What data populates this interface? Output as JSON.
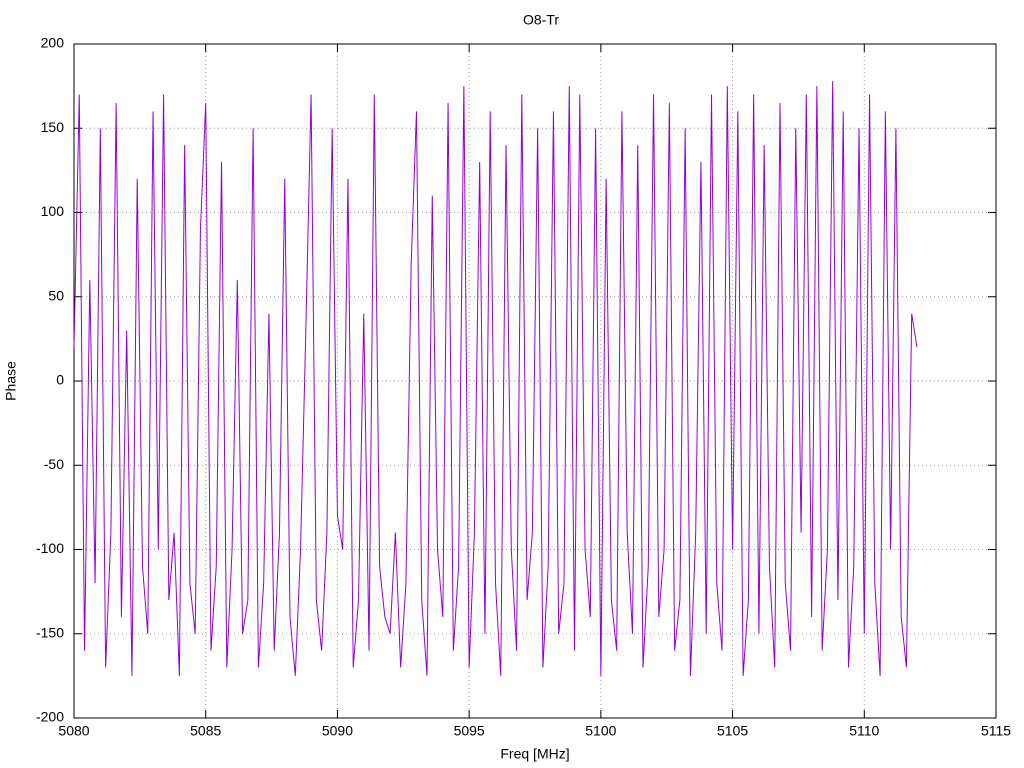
{
  "chart_data": {
    "type": "line",
    "title": "O8-Tr",
    "x_label": "Freq [MHz]",
    "y_label": "Phase",
    "xlim": [
      5080,
      5115
    ],
    "xticks": [
      5080,
      5085,
      5090,
      5095,
      5100,
      5105,
      5110,
      5115
    ],
    "ylim": [
      -200,
      200
    ],
    "yticks": [
      -200,
      -150,
      -100,
      -50,
      0,
      50,
      100,
      150,
      200
    ],
    "grid": true,
    "x": [
      5080,
      5080.2,
      5080.4,
      5080.6,
      5080.8,
      5081,
      5081.2,
      5081.4,
      5081.6,
      5081.8,
      5082,
      5082.2,
      5082.4,
      5082.6,
      5082.8,
      5083,
      5083.2,
      5083.4,
      5083.6,
      5083.8,
      5084,
      5084.2,
      5084.4,
      5084.6,
      5084.8,
      5085,
      5085.2,
      5085.4,
      5085.6,
      5085.8,
      5086,
      5086.2,
      5086.4,
      5086.6,
      5086.8,
      5087,
      5087.2,
      5087.4,
      5087.6,
      5087.8,
      5088,
      5088.2,
      5088.4,
      5088.6,
      5088.8,
      5089,
      5089.2,
      5089.4,
      5089.6,
      5089.8,
      5090,
      5090.2,
      5090.4,
      5090.6,
      5090.8,
      5091,
      5091.2,
      5091.4,
      5091.6,
      5091.8,
      5092,
      5092.2,
      5092.4,
      5092.6,
      5092.8,
      5093,
      5093.2,
      5093.4,
      5093.6,
      5093.8,
      5094,
      5094.2,
      5094.4,
      5094.6,
      5094.8,
      5095,
      5095.2,
      5095.4,
      5095.6,
      5095.8,
      5096,
      5096.2,
      5096.4,
      5096.6,
      5096.8,
      5097,
      5097.2,
      5097.4,
      5097.6,
      5097.8,
      5098,
      5098.2,
      5098.4,
      5098.6,
      5098.8,
      5099,
      5099.2,
      5099.4,
      5099.6,
      5099.8,
      5100,
      5100.2,
      5100.4,
      5100.6,
      5100.8,
      5101,
      5101.2,
      5101.4,
      5101.6,
      5101.8,
      5102,
      5102.2,
      5102.4,
      5102.6,
      5102.8,
      5103,
      5103.2,
      5103.4,
      5103.6,
      5103.8,
      5104,
      5104.2,
      5104.4,
      5104.6,
      5104.8,
      5105,
      5105.2,
      5105.4,
      5105.6,
      5105.8,
      5106,
      5106.2,
      5106.4,
      5106.6,
      5106.8,
      5107,
      5107.2,
      5107.4,
      5107.6,
      5107.8,
      5108,
      5108.2,
      5108.4,
      5108.6,
      5108.8,
      5109,
      5109.2,
      5109.4,
      5109.6,
      5109.8,
      5110,
      5110.2,
      5110.4,
      5110.6,
      5110.8,
      5111,
      5111.2,
      5111.4,
      5111.6,
      5111.8,
      5112
    ],
    "series": [
      {
        "color": "#9400d3",
        "values": [
          20,
          170,
          -160,
          60,
          -120,
          150,
          -170,
          -90,
          165,
          -140,
          30,
          -175,
          120,
          -110,
          -150,
          160,
          -100,
          170,
          -130,
          -90,
          -175,
          140,
          -120,
          -150,
          90,
          165,
          -160,
          -110,
          130,
          -170,
          -100,
          60,
          -150,
          -130,
          150,
          -170,
          -120,
          40,
          -160,
          -90,
          120,
          -140,
          -175,
          -100,
          30,
          170,
          -130,
          -160,
          -90,
          150,
          -80,
          -100,
          120,
          -170,
          -130,
          40,
          -160,
          170,
          -110,
          -140,
          -150,
          -90,
          -170,
          -120,
          70,
          160,
          -130,
          -175,
          110,
          -100,
          -140,
          165,
          -160,
          -110,
          175,
          -170,
          -90,
          130,
          -150,
          160,
          -120,
          -175,
          140,
          -100,
          -160,
          170,
          -130,
          -90,
          150,
          -170,
          -110,
          160,
          -150,
          -120,
          175,
          -160,
          170,
          -100,
          -140,
          150,
          -175,
          120,
          -130,
          -160,
          160,
          -90,
          -150,
          140,
          -170,
          -110,
          170,
          -140,
          -100,
          165,
          -160,
          -130,
          150,
          -175,
          -90,
          130,
          -150,
          170,
          -120,
          -160,
          175,
          -100,
          160,
          -175,
          -130,
          170,
          -150,
          140,
          -110,
          -170,
          165,
          -120,
          -160,
          150,
          -90,
          170,
          -140,
          175,
          -160,
          -100,
          178,
          -130,
          160,
          -170,
          -110,
          150,
          -150,
          170,
          -120,
          -175,
          160,
          -100,
          150,
          -140,
          -170,
          40,
          20
        ]
      }
    ]
  }
}
